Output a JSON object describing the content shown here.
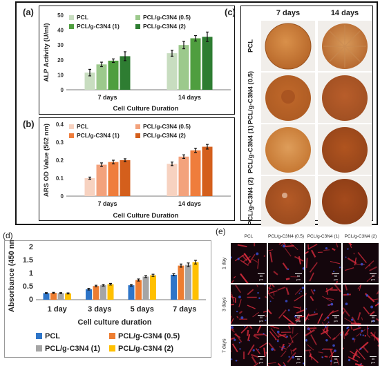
{
  "panels": {
    "a": {
      "label": "(a)"
    },
    "b": {
      "label": "(b)"
    },
    "c": {
      "label": "(c)",
      "columns": [
        "7 days",
        "14 days"
      ],
      "rows": [
        "PCL",
        "PCL/g-C3N4 (0.5)",
        "PCL/g-C3N4 (1)",
        "PCL/g-C3N4 (2)"
      ]
    },
    "d": {
      "label": "(d)"
    },
    "e": {
      "label": "(e)",
      "columns": [
        "PCL",
        "PCL/g-C3N4 (0.5)",
        "PCL/g-C3N4 (1)",
        "PCL/g-C3N4 (2)"
      ],
      "rows": [
        "1 day",
        "3 days",
        "7 days"
      ],
      "scale_label": "50 µm"
    }
  },
  "chart_data": [
    {
      "id": "a",
      "type": "bar",
      "categories": [
        "7 days",
        "14 days"
      ],
      "series": [
        {
          "name": "PCL",
          "values": [
            11.5,
            24.5
          ],
          "errors": [
            2.2,
            2.0
          ],
          "color": "#c8ddc0"
        },
        {
          "name": "PCL/g-C3N4 (0.5)",
          "values": [
            17,
            30
          ],
          "errors": [
            1.5,
            2.5
          ],
          "color": "#9cc98c"
        },
        {
          "name": "PCL/g-C3N4 (1)",
          "values": [
            19.5,
            34.5
          ],
          "errors": [
            1.2,
            1.8
          ],
          "color": "#4f9e3f"
        },
        {
          "name": "PCL/g-C3N4 (2)",
          "values": [
            22.5,
            35.5
          ],
          "errors": [
            3.0,
            3.2
          ],
          "color": "#2e7d32"
        }
      ],
      "xlabel": "Cell Culture Duration",
      "ylabel": "ALP Activity (U/ml)",
      "ylim": [
        0,
        50
      ],
      "yticks": [
        "0",
        "10",
        "20",
        "30",
        "40",
        "50"
      ],
      "legend": "top-left"
    },
    {
      "id": "b",
      "type": "bar",
      "categories": [
        "7 days",
        "14 days"
      ],
      "series": [
        {
          "name": "PCL",
          "values": [
            0.1,
            0.18
          ],
          "errors": [
            0.006,
            0.01
          ],
          "color": "#f7d2c0"
        },
        {
          "name": "PCL/g-C3N4 (0.5)",
          "values": [
            0.175,
            0.22
          ],
          "errors": [
            0.01,
            0.01
          ],
          "color": "#f3a27c"
        },
        {
          "name": "PCL/g-C3N4 (1)",
          "values": [
            0.19,
            0.255
          ],
          "errors": [
            0.01,
            0.012
          ],
          "color": "#ef7d3c"
        },
        {
          "name": "PCL/g-C3N4 (2)",
          "values": [
            0.2,
            0.275
          ],
          "errors": [
            0.008,
            0.013
          ],
          "color": "#d45f1c"
        }
      ],
      "xlabel": "Cell Culture Duration",
      "ylabel": "ARS OD Value (562 nm)",
      "ylim": [
        0,
        0.4
      ],
      "yticks": [
        "0",
        "0.1",
        "0.2",
        "0.3",
        "0.4"
      ],
      "legend": "top-left"
    },
    {
      "id": "d",
      "type": "bar",
      "categories": [
        "1 day",
        "3 days",
        "5 days",
        "7 days"
      ],
      "series": [
        {
          "name": "PCL",
          "values": [
            0.25,
            0.4,
            0.55,
            0.95
          ],
          "errors": [
            0.02,
            0.03,
            0.03,
            0.04
          ],
          "color": "#2e75c8"
        },
        {
          "name": "PCL/g-C3N4 (0.5)",
          "values": [
            0.26,
            0.52,
            0.75,
            1.3
          ],
          "errors": [
            0.02,
            0.03,
            0.04,
            0.06
          ],
          "color": "#ed7d31"
        },
        {
          "name": "PCL/g-C3N4 (1)",
          "values": [
            0.25,
            0.55,
            0.88,
            1.33
          ],
          "errors": [
            0.02,
            0.03,
            0.04,
            0.07
          ],
          "color": "#a5a5a5"
        },
        {
          "name": "PCL/g-C3N4 (2)",
          "values": [
            0.24,
            0.59,
            0.93,
            1.43
          ],
          "errors": [
            0.02,
            0.03,
            0.04,
            0.07
          ],
          "color": "#ffc000"
        }
      ],
      "xlabel": "Cell culture duration",
      "ylabel": "Absorbance (450 nm)",
      "ylim": [
        0,
        2
      ],
      "yticks": [
        "0",
        "0.5",
        "1",
        "1.5",
        "2"
      ],
      "legend": "bottom"
    }
  ],
  "colors": {
    "dish_base": "#c7792f",
    "dish_dark": "#a8561f",
    "fluor_bg": "#14060c",
    "fluor_red": "#d62b3c",
    "fluor_blue": "#3a4fd0"
  }
}
